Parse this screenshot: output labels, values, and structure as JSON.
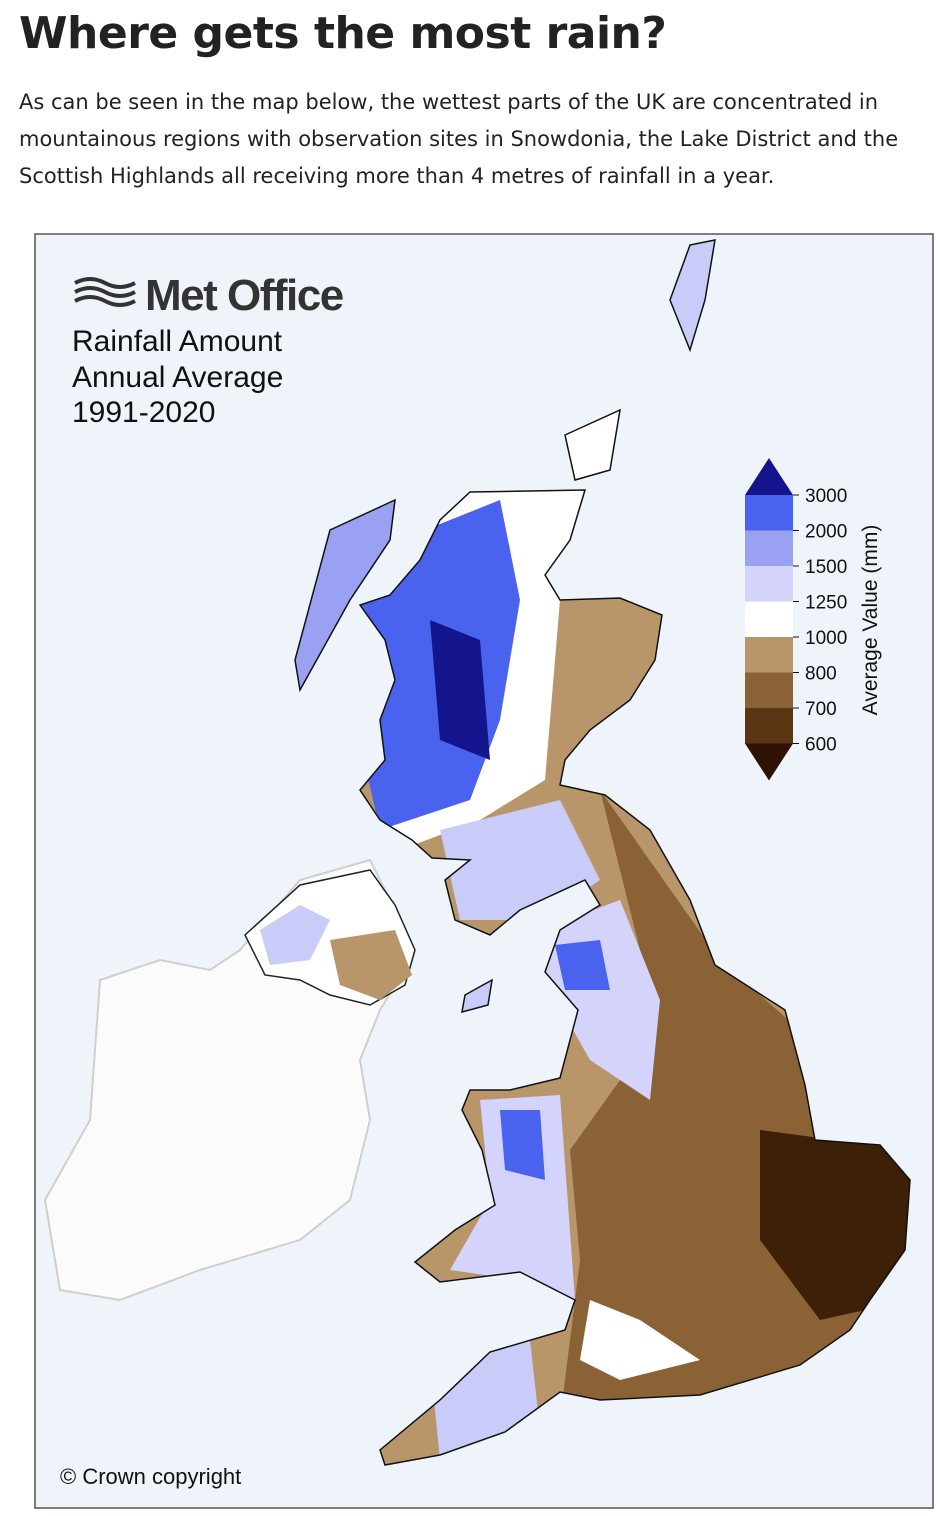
{
  "header": {
    "title": "Where gets the most rain?"
  },
  "intro": "As can be seen in the map below, the wettest parts of the UK are concentrated in mountainous regions with observation sites in Snowdonia, the Lake District and the Scottish Highlands all receiving more than 4 metres of rainfall in a year.",
  "map": {
    "brand": "Met Office",
    "title_lines": [
      "Rainfall Amount",
      "Annual Average",
      "1991-2020"
    ],
    "copyright": "© Crown copyright",
    "legend": {
      "label": "Average Value (mm)",
      "colors": [
        "#14148c",
        "#4a63ee",
        "#9aa1f3",
        "#d3d3fb",
        "#ffffff",
        "#b8966a",
        "#8a6236",
        "#5a3512",
        "#2e1206"
      ],
      "ticks": [
        "3000",
        "2000",
        "1500",
        "1250",
        "1000",
        "800",
        "700",
        "600"
      ]
    }
  }
}
